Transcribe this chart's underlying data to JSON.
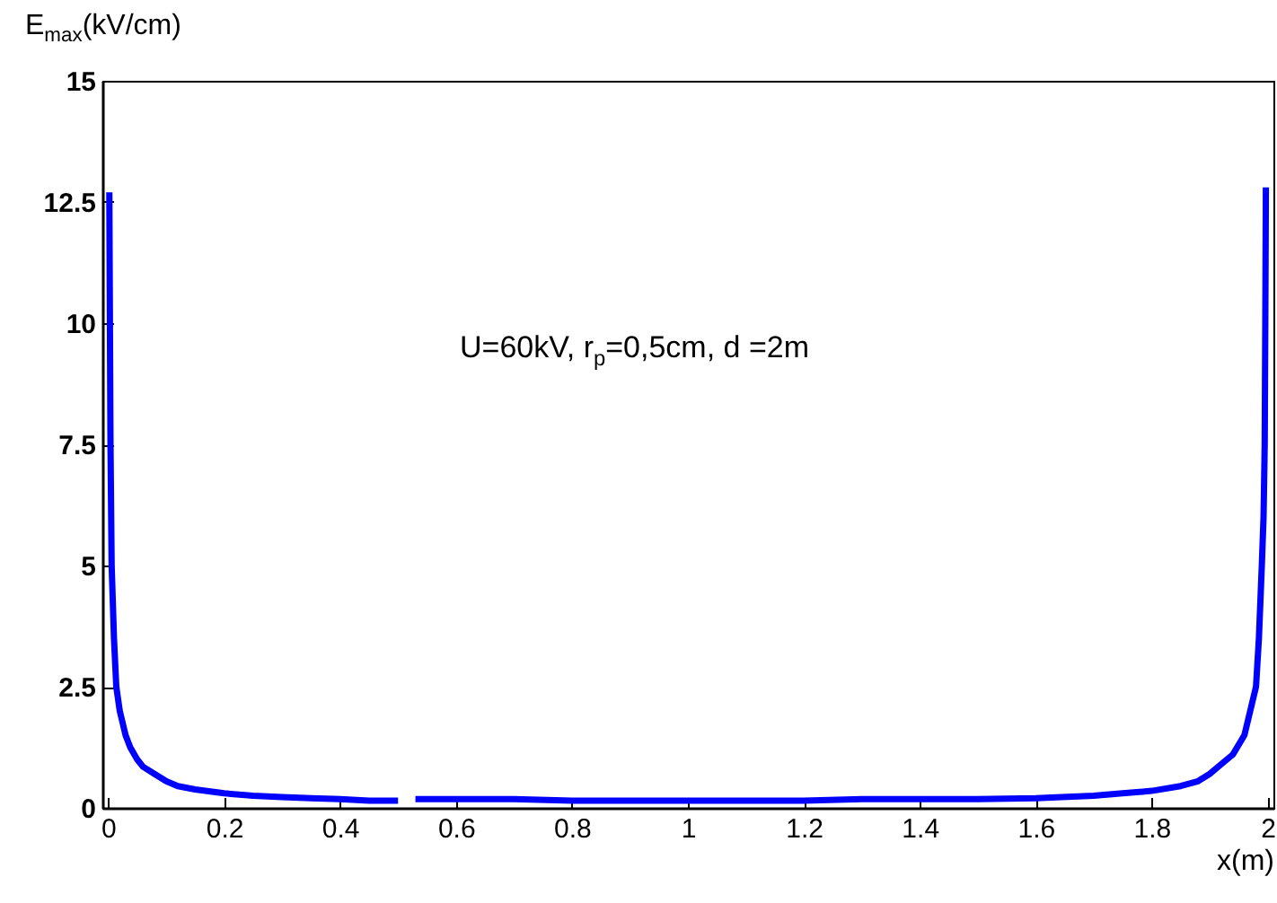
{
  "chart_data": {
    "type": "line",
    "xlabel": "x(m)",
    "ylabel": "E$_{max}$(kV/cm)",
    "annotations": [
      "U=60kV, r$_{p}$=0,5cm, d =2m"
    ],
    "x": [
      0.002,
      0.003,
      0.004,
      0.006,
      0.01,
      0.014,
      0.02,
      0.03,
      0.038,
      0.05,
      0.06,
      0.08,
      0.1,
      0.12,
      0.15,
      0.2,
      0.25,
      0.3,
      0.35,
      0.4,
      0.45,
      0.5,
      0.52,
      0.53,
      0.6,
      0.7,
      0.8,
      0.9,
      1,
      1.1,
      1.2,
      1.3,
      1.4,
      1.5,
      1.6,
      1.7,
      1.75,
      1.8,
      1.85,
      1.88,
      1.9,
      1.92,
      1.94,
      1.96,
      1.97,
      1.98,
      1.985,
      1.99,
      1.993,
      1.995,
      1.996,
      1.997
    ],
    "series": [
      {
        "color": "#0000ff",
        "values": [
          12.7,
          10,
          7.5,
          5,
          3.5,
          2.5,
          2,
          1.5,
          1.25,
          1,
          0.85,
          0.7,
          0.55,
          0.45,
          0.38,
          0.3,
          0.25,
          0.22,
          0.2,
          0.18,
          0.15,
          0.15,
          null,
          0.18,
          0.18,
          0.18,
          0.15,
          0.15,
          0.15,
          0.15,
          0.15,
          0.18,
          0.18,
          0.18,
          0.2,
          0.25,
          0.3,
          0.35,
          0.45,
          0.55,
          0.7,
          0.9,
          1.1,
          1.5,
          2,
          2.5,
          3.5,
          5,
          6,
          7.5,
          10,
          12.8
        ]
      }
    ],
    "xlim": [
      -0.01,
      2.01
    ],
    "ylim": [
      0,
      15
    ],
    "xticks": [
      0,
      0.2,
      0.4,
      0.6,
      0.8,
      1,
      1.2,
      1.4,
      1.6,
      1.8,
      2
    ],
    "yticks": [
      0,
      2.5,
      5,
      7.5,
      10,
      12.5,
      15
    ],
    "grid": false,
    "marker": "none",
    "line_style": "solid"
  }
}
